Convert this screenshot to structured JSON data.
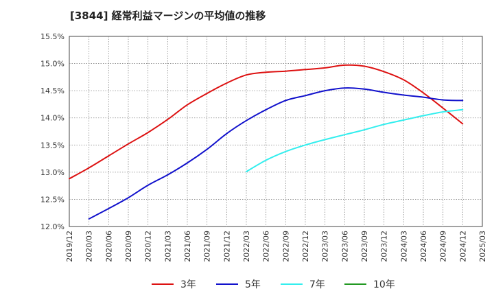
{
  "chart_data": {
    "type": "line",
    "title": "[3844]  経常利益マージンの平均値の推移",
    "xlabel": "",
    "ylabel": "",
    "x_ticks": [
      "2019/12",
      "2020/03",
      "2020/06",
      "2020/09",
      "2020/12",
      "2021/03",
      "2021/06",
      "2021/09",
      "2021/12",
      "2022/03",
      "2022/06",
      "2022/09",
      "2022/12",
      "2023/03",
      "2023/06",
      "2023/09",
      "2023/12",
      "2024/03",
      "2024/06",
      "2024/09",
      "2024/12",
      "2025/03"
    ],
    "y_ticks": [
      "12.0%",
      "12.5%",
      "13.0%",
      "13.5%",
      "14.0%",
      "14.5%",
      "15.0%",
      "15.5%"
    ],
    "ylim": [
      12.0,
      15.5
    ],
    "grid": true,
    "legend_position": "bottom",
    "series": [
      {
        "name": "3年",
        "color": "#dd1111",
        "x": [
          "2019/12",
          "2020/03",
          "2020/06",
          "2020/09",
          "2020/12",
          "2021/03",
          "2021/06",
          "2021/09",
          "2021/12",
          "2022/03",
          "2022/06",
          "2022/09",
          "2022/12",
          "2023/03",
          "2023/06",
          "2023/09",
          "2023/12",
          "2024/03",
          "2024/06",
          "2024/09",
          "2024/12"
        ],
        "values": [
          12.88,
          13.08,
          13.3,
          13.52,
          13.73,
          13.97,
          14.24,
          14.45,
          14.64,
          14.79,
          14.84,
          14.86,
          14.89,
          14.92,
          14.97,
          14.95,
          14.85,
          14.7,
          14.46,
          14.18,
          13.89
        ]
      },
      {
        "name": "5年",
        "color": "#1111cc",
        "x": [
          "2020/03",
          "2020/06",
          "2020/09",
          "2020/12",
          "2021/03",
          "2021/06",
          "2021/09",
          "2021/12",
          "2022/03",
          "2022/06",
          "2022/09",
          "2022/12",
          "2023/03",
          "2023/06",
          "2023/09",
          "2023/12",
          "2024/03",
          "2024/06",
          "2024/09",
          "2024/12"
        ],
        "values": [
          12.14,
          12.33,
          12.53,
          12.76,
          12.95,
          13.17,
          13.42,
          13.71,
          13.95,
          14.15,
          14.32,
          14.41,
          14.5,
          14.55,
          14.53,
          14.47,
          14.42,
          14.38,
          14.33,
          14.32
        ]
      },
      {
        "name": "7年",
        "color": "#33eeee",
        "x": [
          "2022/03",
          "2022/06",
          "2022/09",
          "2022/12",
          "2023/03",
          "2023/06",
          "2023/09",
          "2023/12",
          "2024/03",
          "2024/06",
          "2024/09",
          "2024/12"
        ],
        "values": [
          13.01,
          13.22,
          13.38,
          13.5,
          13.6,
          13.69,
          13.78,
          13.88,
          13.96,
          14.04,
          14.11,
          14.15
        ]
      },
      {
        "name": "10年",
        "color": "#229922",
        "x": [],
        "values": []
      }
    ]
  }
}
